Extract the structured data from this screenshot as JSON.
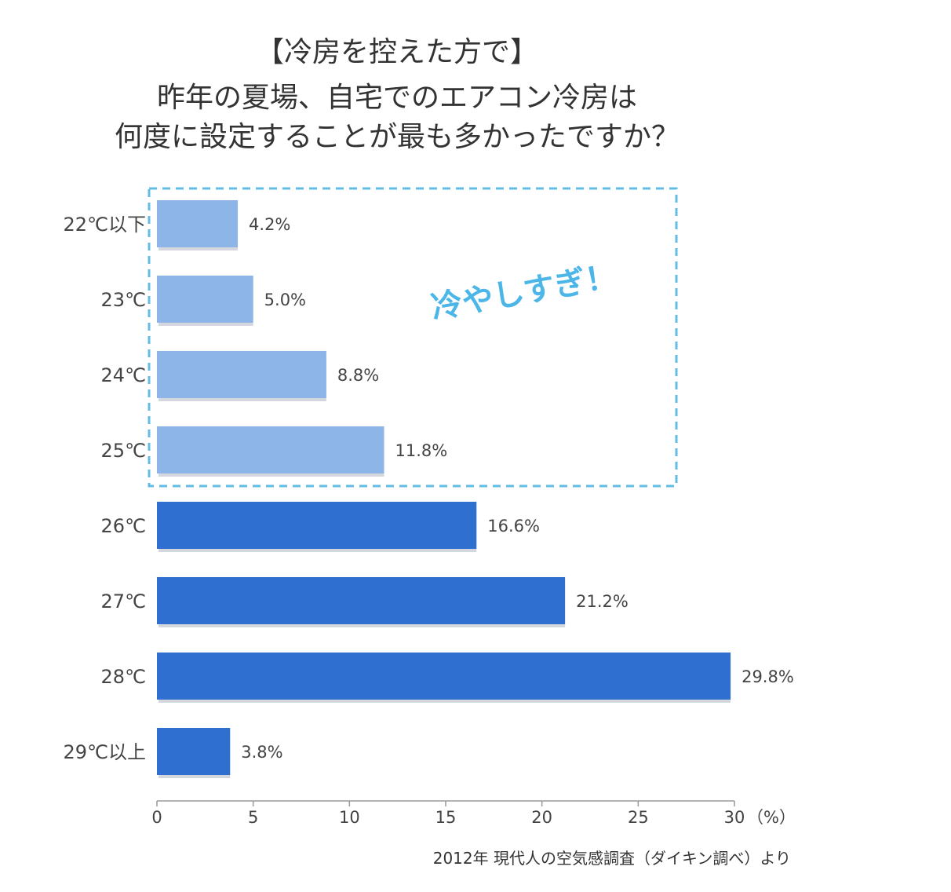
{
  "chart_data": {
    "type": "bar",
    "orientation": "horizontal",
    "title_lines": [
      "【冷房を控えた方で】",
      "昨年の夏場、自宅でのエアコン冷房は",
      "何度に設定することが最も多かったですか？"
    ],
    "categories": [
      "22℃以下",
      "23℃",
      "24℃",
      "25℃",
      "26℃",
      "27℃",
      "28℃",
      "29℃以上"
    ],
    "values": [
      4.2,
      5.0,
      8.8,
      11.8,
      16.6,
      21.2,
      29.8,
      3.8
    ],
    "value_labels": [
      "4.2%",
      "5.0%",
      "8.8%",
      "11.8%",
      "16.6%",
      "21.2%",
      "29.8%",
      "3.8%"
    ],
    "xlim": [
      0,
      30
    ],
    "xticks": [
      0,
      5,
      10,
      15,
      20,
      25,
      30
    ],
    "xtick_labels": [
      "0",
      "5",
      "10",
      "15",
      "20",
      "25",
      "30"
    ],
    "x_unit": "（%）",
    "highlight": {
      "categories": [
        "22℃以下",
        "23℃",
        "24℃",
        "25℃"
      ],
      "annotation": "冷やしすぎ！"
    },
    "colors": {
      "highlight_bar": "#8db5e8",
      "normal_bar": "#2f6fcf",
      "bar_shadow": "#d4d8de",
      "highlight_border": "#63bde3",
      "annotation": "#4cb6e8",
      "axis": "#999999"
    },
    "source": "2012年 現代人の空気感調査（ダイキン調べ）より",
    "grid": false,
    "legend": "none"
  }
}
